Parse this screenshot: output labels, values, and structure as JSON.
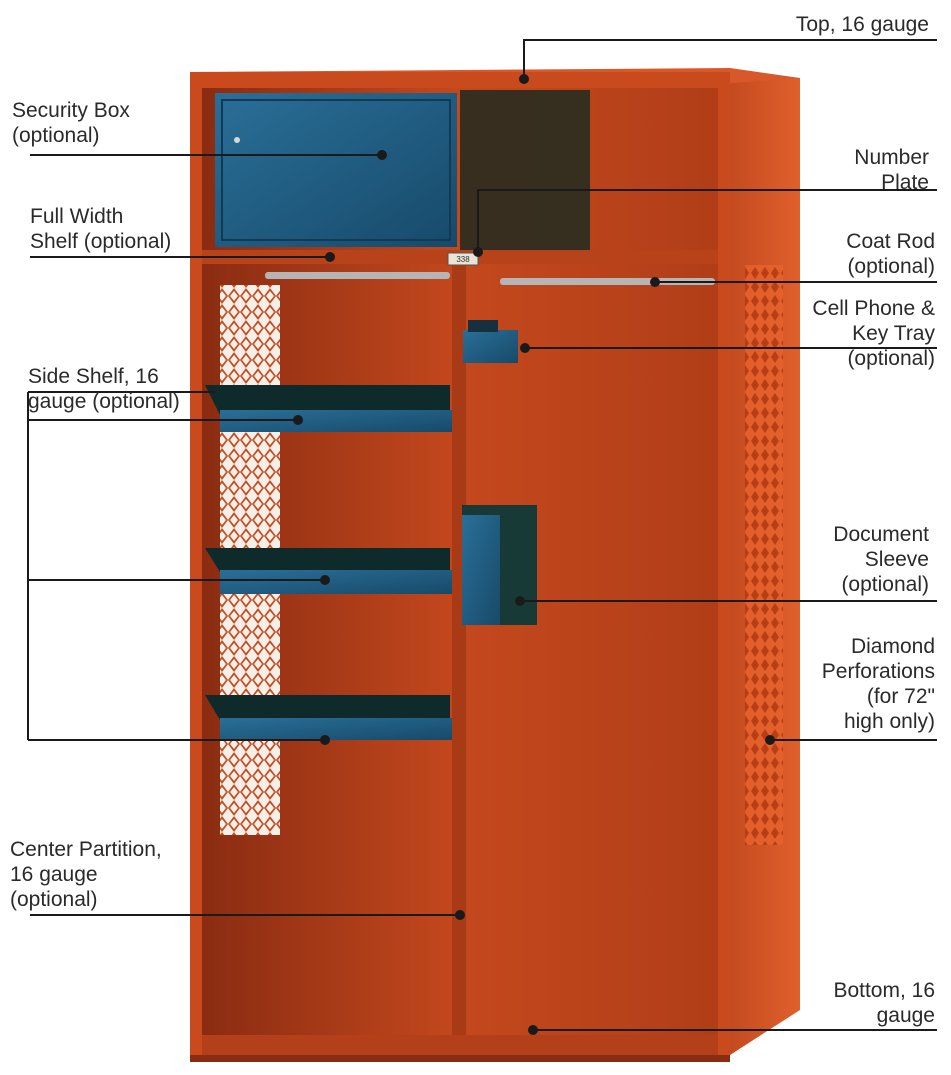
{
  "labels": {
    "top": [
      "Top, 16 gauge"
    ],
    "security": [
      "Security Box",
      "(optional)"
    ],
    "number": [
      "Number",
      "Plate"
    ],
    "fullshelf": [
      "Full Width",
      "Shelf (optional)"
    ],
    "coatrod": [
      "Coat Rod",
      "(optional)"
    ],
    "cellphone": [
      "Cell Phone &",
      "Key Tray",
      "(optional)"
    ],
    "sideshelf": [
      "Side Shelf, 16",
      "gauge (optional)"
    ],
    "docsleeve": [
      "Document",
      "Sleeve",
      "(optional)"
    ],
    "diamond": [
      "Diamond",
      "Perforations",
      "(for 72\"",
      "high only)"
    ],
    "partition": [
      "Center Partition,",
      "16 gauge",
      "(optional)"
    ],
    "bottom": [
      "Bottom, 16",
      "gauge"
    ]
  },
  "plate_text": "338",
  "colors": {
    "cabinet": "#c8461b",
    "cabinet_dark": "#8a2a10",
    "blue": "#1f5f86",
    "blue_dark": "#174a6a",
    "line": "#1a1a1a",
    "text": "#2a2a2a"
  }
}
